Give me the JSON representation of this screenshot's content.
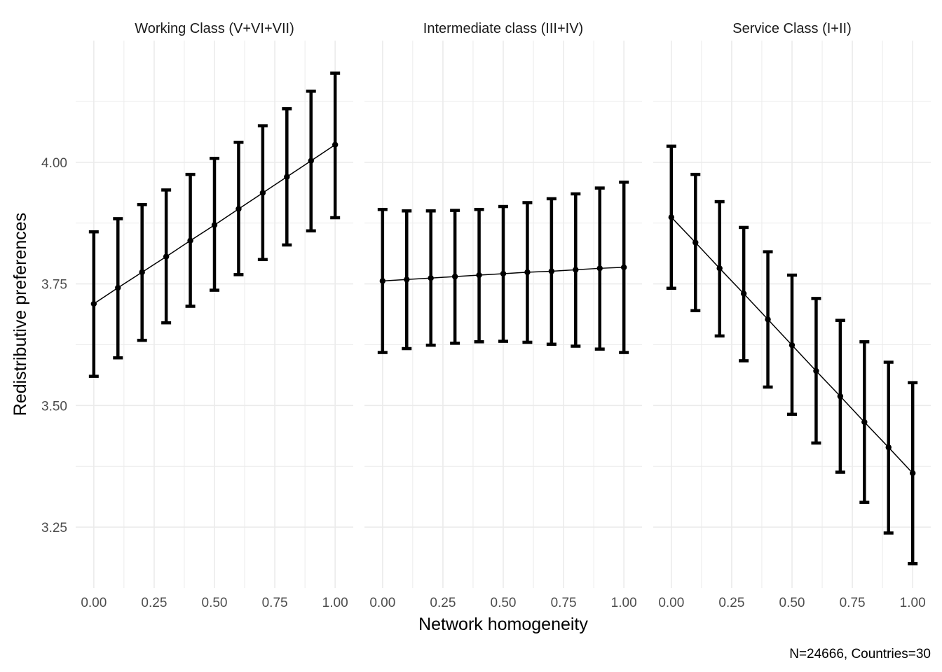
{
  "chart_data": {
    "type": "line",
    "xlabel": "Network homogeneity",
    "ylabel": "Redistributive preferences",
    "caption": "N=24666, Countries=30",
    "ylim": [
      3.125,
      4.25
    ],
    "xlim": [
      -0.075,
      1.075
    ],
    "y_ticks": [
      3.25,
      3.5,
      3.75,
      4.0
    ],
    "y_tick_labels": [
      "3.25",
      "3.50",
      "3.75",
      "4.00"
    ],
    "x_ticks": [
      0,
      0.25,
      0.5,
      0.75,
      1.0
    ],
    "x_tick_labels": [
      "0.00",
      "0.25",
      "0.50",
      "0.75",
      "1.00"
    ],
    "grid": true,
    "error_bars": true,
    "x": [
      0,
      0.1,
      0.2,
      0.3,
      0.4,
      0.5,
      0.6,
      0.7,
      0.8,
      0.9,
      1.0
    ],
    "panels": [
      {
        "title": "Working Class (V+VI+VII)",
        "values": [
          3.709,
          3.742,
          3.774,
          3.806,
          3.839,
          3.871,
          3.904,
          3.937,
          3.97,
          4.003,
          4.036
        ],
        "lower": [
          3.56,
          3.598,
          3.634,
          3.67,
          3.704,
          3.737,
          3.769,
          3.8,
          3.83,
          3.859,
          3.886
        ],
        "upper": [
          3.857,
          3.884,
          3.913,
          3.943,
          3.975,
          4.008,
          4.041,
          4.075,
          4.11,
          4.146,
          4.183
        ]
      },
      {
        "title": "Intermediate class (III+IV)",
        "values": [
          3.756,
          3.759,
          3.762,
          3.765,
          3.768,
          3.771,
          3.774,
          3.776,
          3.779,
          3.782,
          3.784
        ],
        "lower": [
          3.609,
          3.617,
          3.624,
          3.628,
          3.631,
          3.632,
          3.63,
          3.626,
          3.622,
          3.616,
          3.609
        ],
        "upper": [
          3.903,
          3.9,
          3.9,
          3.901,
          3.903,
          3.909,
          3.917,
          3.925,
          3.935,
          3.947,
          3.959
        ]
      },
      {
        "title": "Service Class (I+II)",
        "values": [
          3.887,
          3.835,
          3.782,
          3.73,
          3.677,
          3.624,
          3.571,
          3.519,
          3.466,
          3.414,
          3.361
        ],
        "lower": [
          3.741,
          3.695,
          3.643,
          3.592,
          3.538,
          3.482,
          3.423,
          3.363,
          3.301,
          3.238,
          3.175
        ],
        "upper": [
          4.033,
          3.975,
          3.919,
          3.866,
          3.816,
          3.768,
          3.72,
          3.675,
          3.631,
          3.589,
          3.547
        ]
      }
    ]
  }
}
